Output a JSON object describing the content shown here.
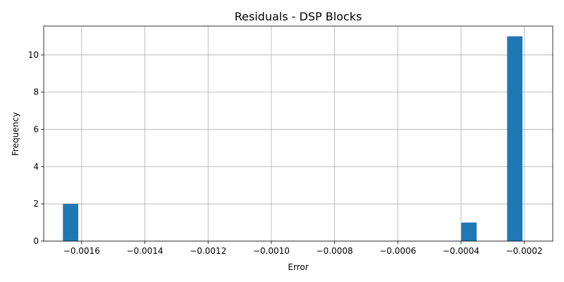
{
  "chart_data": {
    "type": "bar",
    "title": "Residuals - DSP Blocks",
    "xlabel": "Error",
    "ylabel": "Frequency",
    "xlim": [
      -0.00172,
      -0.00011
    ],
    "ylim": [
      0,
      11.55
    ],
    "grid": true,
    "bar_color": "#1f77b4",
    "bin_width": 4.86e-05,
    "bins": [
      {
        "x": -0.001635,
        "count": 2
      },
      {
        "x": -0.000375,
        "count": 1
      },
      {
        "x": -0.00023,
        "count": 11
      }
    ],
    "x_ticks": [
      {
        "value": -0.0016,
        "label": "−0.0016"
      },
      {
        "value": -0.0014,
        "label": "−0.0014"
      },
      {
        "value": -0.0012,
        "label": "−0.0012"
      },
      {
        "value": -0.001,
        "label": "−0.0010"
      },
      {
        "value": -0.0008,
        "label": "−0.0008"
      },
      {
        "value": -0.0006,
        "label": "−0.0006"
      },
      {
        "value": -0.0004,
        "label": "−0.0004"
      },
      {
        "value": -0.0002,
        "label": "−0.0002"
      }
    ],
    "y_ticks": [
      {
        "value": 0,
        "label": "0"
      },
      {
        "value": 2,
        "label": "2"
      },
      {
        "value": 4,
        "label": "4"
      },
      {
        "value": 6,
        "label": "6"
      },
      {
        "value": 8,
        "label": "8"
      },
      {
        "value": 10,
        "label": "10"
      }
    ]
  }
}
